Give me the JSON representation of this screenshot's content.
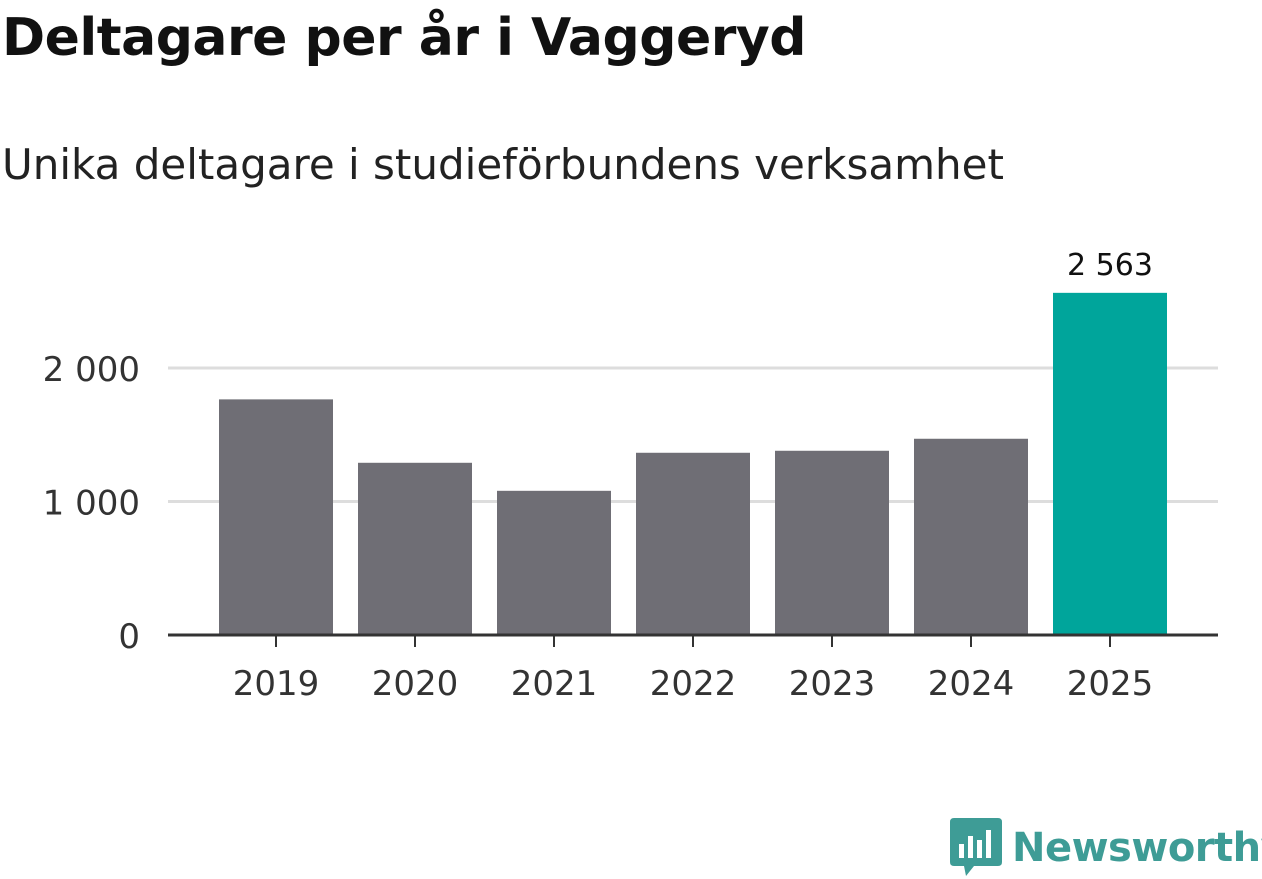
{
  "header": {
    "title": "Deltagare per år i Vaggeryd",
    "subtitle": "Unika deltagare i studieförbundens verksamhet"
  },
  "chart_data": {
    "type": "bar",
    "categories": [
      "2019",
      "2020",
      "2021",
      "2022",
      "2023",
      "2024",
      "2025"
    ],
    "values": [
      1765,
      1290,
      1080,
      1365,
      1380,
      1470,
      2563
    ],
    "highlight_index": 6,
    "value_labels": [
      "",
      "",
      "",
      "",
      "",
      "",
      "2 563"
    ],
    "y_ticks": [
      0,
      1000,
      2000
    ],
    "y_tick_labels": [
      "0",
      "1 000",
      "2 000"
    ],
    "ylim": [
      0,
      2800
    ],
    "grid": true,
    "colors": {
      "bar": "#6f6e75",
      "highlight": "#00a59b",
      "grid": "#dddddd",
      "axis": "#333333",
      "text": "#333333"
    }
  },
  "brand": {
    "name": "Newsworthy",
    "icon": "newsworthy-logo-icon",
    "color": "#3e9c96"
  }
}
